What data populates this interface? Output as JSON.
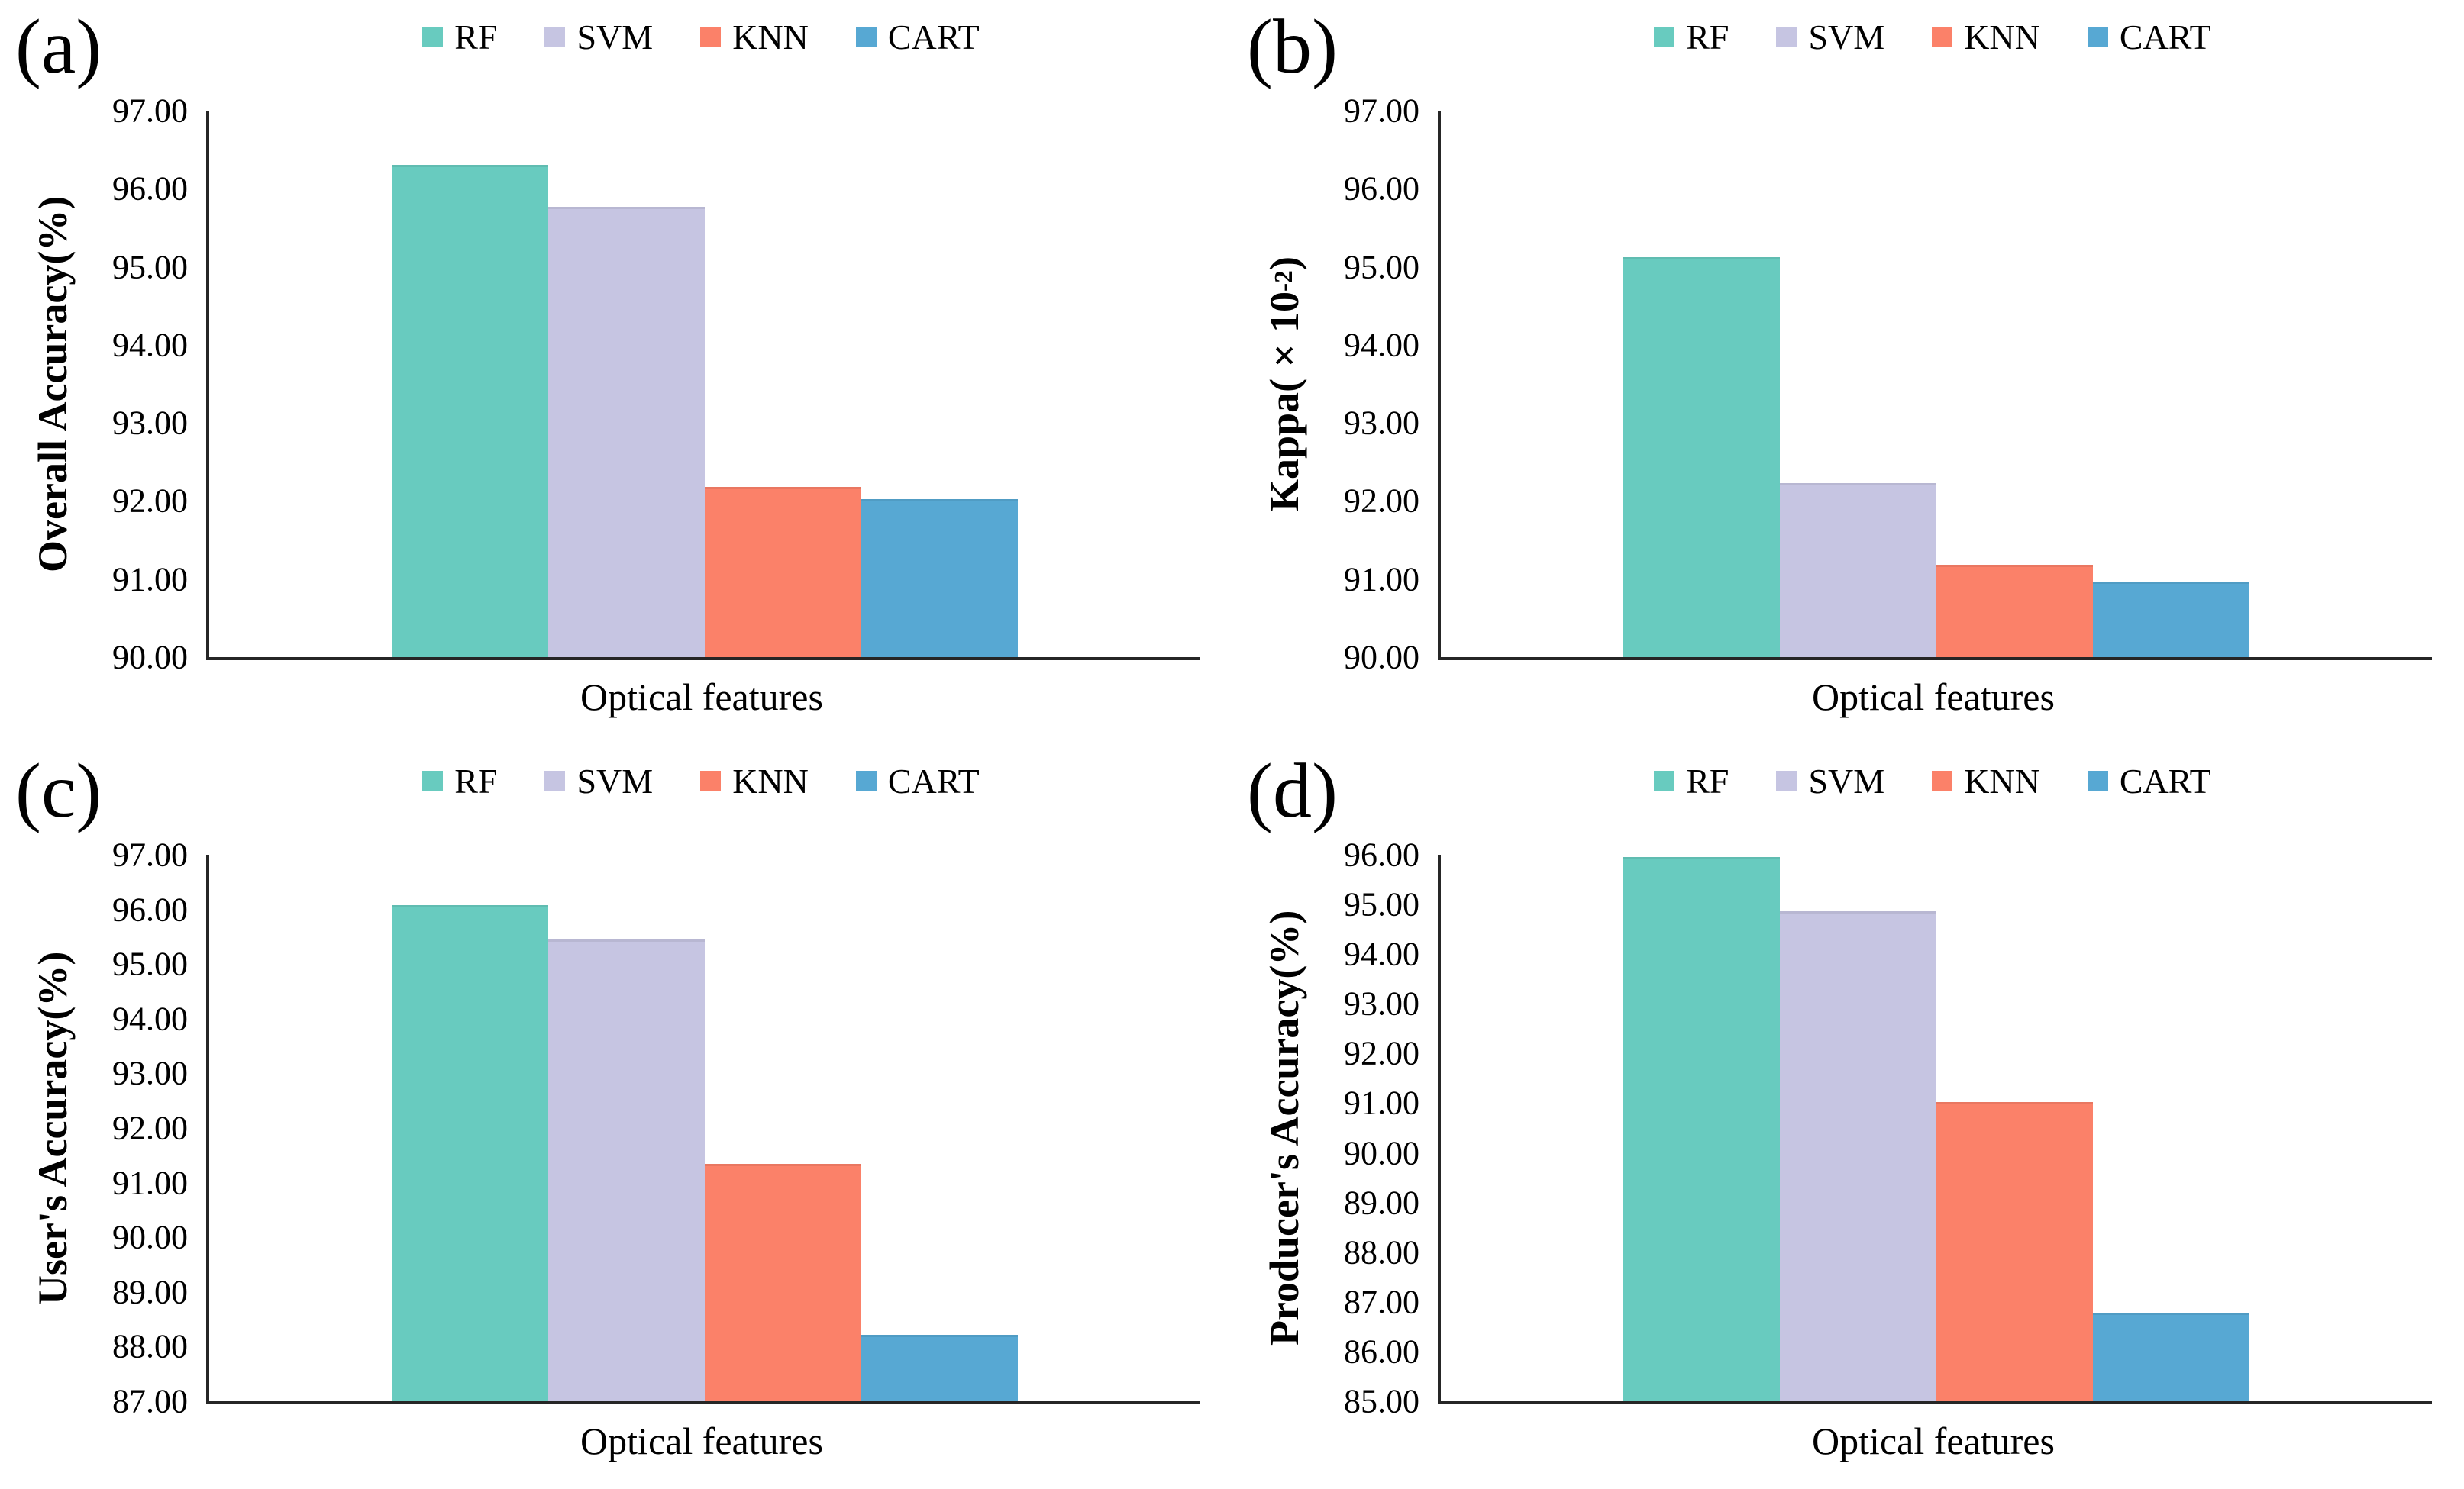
{
  "figure": {
    "background": "#ffffff",
    "axis_color": "#262626",
    "text_color": "#000000"
  },
  "series_colors": {
    "RF": "#68CBBF",
    "SVM": "#C6C5E2",
    "KNN": "#FB8169",
    "CART": "#57A8D3"
  },
  "chart_data": [
    {
      "panel": "(a)",
      "type": "bar",
      "ylabel": "Overall Accuracy(%)",
      "ylabel_parts": {
        "main": "Overall Accuracy(%)",
        "sup": "",
        "end": ""
      },
      "xlabel": "Optical features",
      "categories": [
        "Optical features"
      ],
      "series": [
        {
          "name": "RF",
          "values": [
            96.31
          ]
        },
        {
          "name": "SVM",
          "values": [
            95.77
          ]
        },
        {
          "name": "KNN",
          "values": [
            92.18
          ]
        },
        {
          "name": "CART",
          "values": [
            92.02
          ]
        }
      ],
      "ylim": [
        90,
        97
      ],
      "ytick_step": 1,
      "ytick_format": "0.00",
      "legend_position": "top",
      "grid": false
    },
    {
      "panel": "(b)",
      "type": "bar",
      "ylabel": "Kappa(×10⁻²)",
      "ylabel_parts": {
        "main": "Kappa(×10",
        "sup": "-2",
        "end": ")"
      },
      "xlabel": "Optical features",
      "categories": [
        "Optical features"
      ],
      "series": [
        {
          "name": "RF",
          "values": [
            95.12
          ]
        },
        {
          "name": "SVM",
          "values": [
            92.23
          ]
        },
        {
          "name": "KNN",
          "values": [
            91.18
          ]
        },
        {
          "name": "CART",
          "values": [
            90.97
          ]
        }
      ],
      "ylim": [
        90,
        97
      ],
      "ytick_step": 1,
      "ytick_format": "0.00",
      "legend_position": "top",
      "grid": false
    },
    {
      "panel": "(c)",
      "type": "bar",
      "ylabel": "User's Accuracy(%)",
      "ylabel_parts": {
        "main": "User's Accuracy(%)",
        "sup": "",
        "end": ""
      },
      "xlabel": "Optical features",
      "categories": [
        "Optical features"
      ],
      "series": [
        {
          "name": "RF",
          "values": [
            96.08
          ]
        },
        {
          "name": "SVM",
          "values": [
            95.45
          ]
        },
        {
          "name": "KNN",
          "values": [
            91.35
          ]
        },
        {
          "name": "CART",
          "values": [
            88.22
          ]
        }
      ],
      "ylim": [
        87,
        97
      ],
      "ytick_step": 1,
      "ytick_format": "0.00",
      "legend_position": "top",
      "grid": false
    },
    {
      "panel": "(d)",
      "type": "bar",
      "ylabel": "Producer's Accuracy(%)",
      "ylabel_parts": {
        "main": "Producer's Accuracy(%)",
        "sup": "",
        "end": ""
      },
      "xlabel": "Optical features",
      "categories": [
        "Optical features"
      ],
      "series": [
        {
          "name": "RF",
          "values": [
            95.95
          ]
        },
        {
          "name": "SVM",
          "values": [
            94.87
          ]
        },
        {
          "name": "KNN",
          "values": [
            91.02
          ]
        },
        {
          "name": "CART",
          "values": [
            86.78
          ]
        }
      ],
      "ylim": [
        85,
        96
      ],
      "ytick_step": 1,
      "ytick_format": "0.00",
      "legend_position": "top",
      "grid": false
    }
  ]
}
